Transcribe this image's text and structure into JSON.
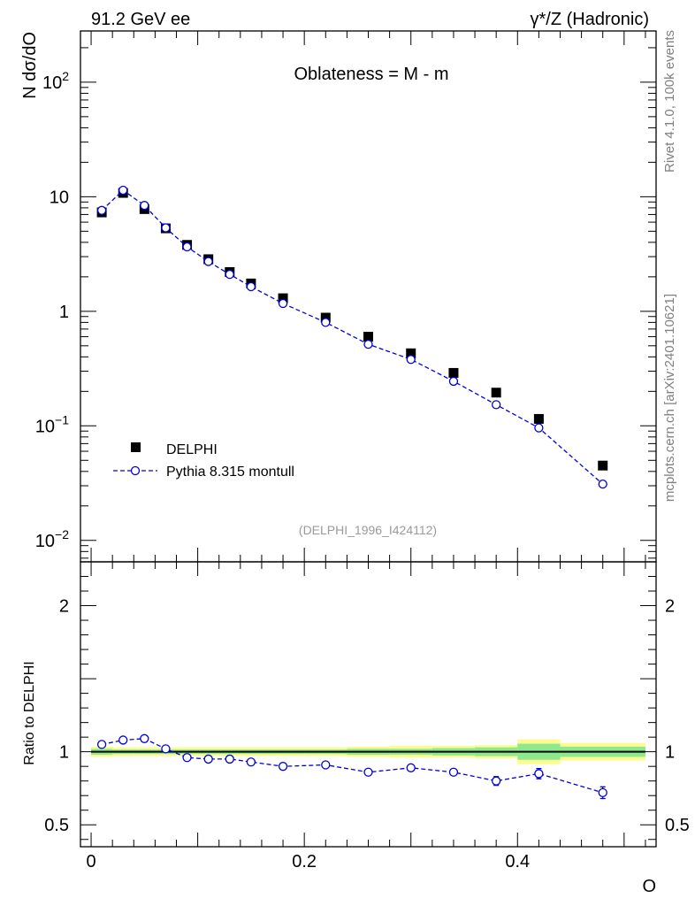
{
  "header": {
    "left": "91.2 GeV ee",
    "right": "γ*/Z (Hadronic)"
  },
  "side": {
    "rivet": "Rivet 4.1.0,  100k events",
    "mcplots": "mcplots.cern.ch [arXiv:2401.10621]"
  },
  "chart_data": {
    "type": "scatter",
    "title": "Oblateness = M - m",
    "analysis_id": "(DELPHI_1996_I424112)",
    "xlabel": "O",
    "ylabel": "N  dσ/dO",
    "ratio_ylabel": "Ratio to DELPHI",
    "xlim": [
      -0.01,
      0.53
    ],
    "ylim": [
      0.0065,
      280
    ],
    "ratio_ylim": [
      0.35,
      2.3
    ],
    "x_ticks": [
      {
        "v": 0,
        "label": "0"
      },
      {
        "v": 0.2,
        "label": "0.2"
      },
      {
        "v": 0.4,
        "label": "0.4"
      }
    ],
    "y_ticks": [
      {
        "v": 100,
        "base": "10",
        "exp": "2",
        "label": "10^2"
      },
      {
        "v": 10,
        "base": "10",
        "exp": "",
        "label": "10"
      },
      {
        "v": 1,
        "base": "1",
        "exp": "",
        "label": "1"
      },
      {
        "v": 0.1,
        "base": "10",
        "exp": "−1",
        "label": "10^-1"
      },
      {
        "v": 0.01,
        "base": "10",
        "exp": "−2",
        "label": "10^-2"
      }
    ],
    "ratio_ticks": [
      {
        "v": 2,
        "label": "2"
      },
      {
        "v": 1,
        "label": "1"
      },
      {
        "v": 0.5,
        "label": "0.5"
      }
    ],
    "legend": {
      "position": "lower-left",
      "entries": [
        "DELPHI",
        "Pythia 8.315 montull"
      ]
    },
    "series": [
      {
        "name": "DELPHI",
        "color": "#000000",
        "marker": "square",
        "x": [
          0.01,
          0.03,
          0.05,
          0.07,
          0.09,
          0.11,
          0.13,
          0.15,
          0.18,
          0.22,
          0.26,
          0.3,
          0.34,
          0.38,
          0.42,
          0.48
        ],
        "values": [
          7.3,
          10.8,
          7.8,
          5.3,
          3.8,
          2.85,
          2.2,
          1.75,
          1.3,
          0.88,
          0.6,
          0.43,
          0.29,
          0.195,
          0.115,
          0.045
        ]
      },
      {
        "name": "Pythia 8.315 montull",
        "color": "#0000dd",
        "marker": "open-circle",
        "x": [
          0.01,
          0.03,
          0.05,
          0.07,
          0.09,
          0.11,
          0.13,
          0.15,
          0.18,
          0.22,
          0.26,
          0.3,
          0.34,
          0.38,
          0.42,
          0.48
        ],
        "values": [
          7.6,
          11.4,
          8.4,
          5.35,
          3.65,
          2.72,
          2.1,
          1.64,
          1.17,
          0.8,
          0.515,
          0.38,
          0.245,
          0.153,
          0.096,
          0.031
        ]
      }
    ],
    "ratio": {
      "name": "Pythia 8.315 montull / DELPHI",
      "x": [
        0.01,
        0.03,
        0.05,
        0.07,
        0.09,
        0.11,
        0.13,
        0.15,
        0.18,
        0.22,
        0.26,
        0.3,
        0.34,
        0.38,
        0.42,
        0.48
      ],
      "values": [
        1.05,
        1.08,
        1.09,
        1.02,
        0.96,
        0.95,
        0.95,
        0.93,
        0.9,
        0.91,
        0.86,
        0.89,
        0.86,
        0.8,
        0.85,
        0.72
      ],
      "errors": [
        0.01,
        0.01,
        0.01,
        0.01,
        0.01,
        0.01,
        0.01,
        0.01,
        0.01,
        0.01,
        0.01,
        0.015,
        0.02,
        0.03,
        0.035,
        0.04
      ]
    },
    "ratio_bands": {
      "x_edges": [
        0.0,
        0.02,
        0.04,
        0.06,
        0.08,
        0.1,
        0.12,
        0.14,
        0.16,
        0.2,
        0.24,
        0.28,
        0.32,
        0.36,
        0.4,
        0.44,
        0.52
      ],
      "inner": [
        0.02,
        0.015,
        0.015,
        0.015,
        0.015,
        0.015,
        0.015,
        0.015,
        0.015,
        0.015,
        0.02,
        0.02,
        0.025,
        0.03,
        0.055,
        0.035
      ],
      "outer": [
        0.035,
        0.03,
        0.03,
        0.03,
        0.03,
        0.03,
        0.03,
        0.03,
        0.03,
        0.03,
        0.035,
        0.04,
        0.04,
        0.045,
        0.085,
        0.06
      ]
    }
  }
}
